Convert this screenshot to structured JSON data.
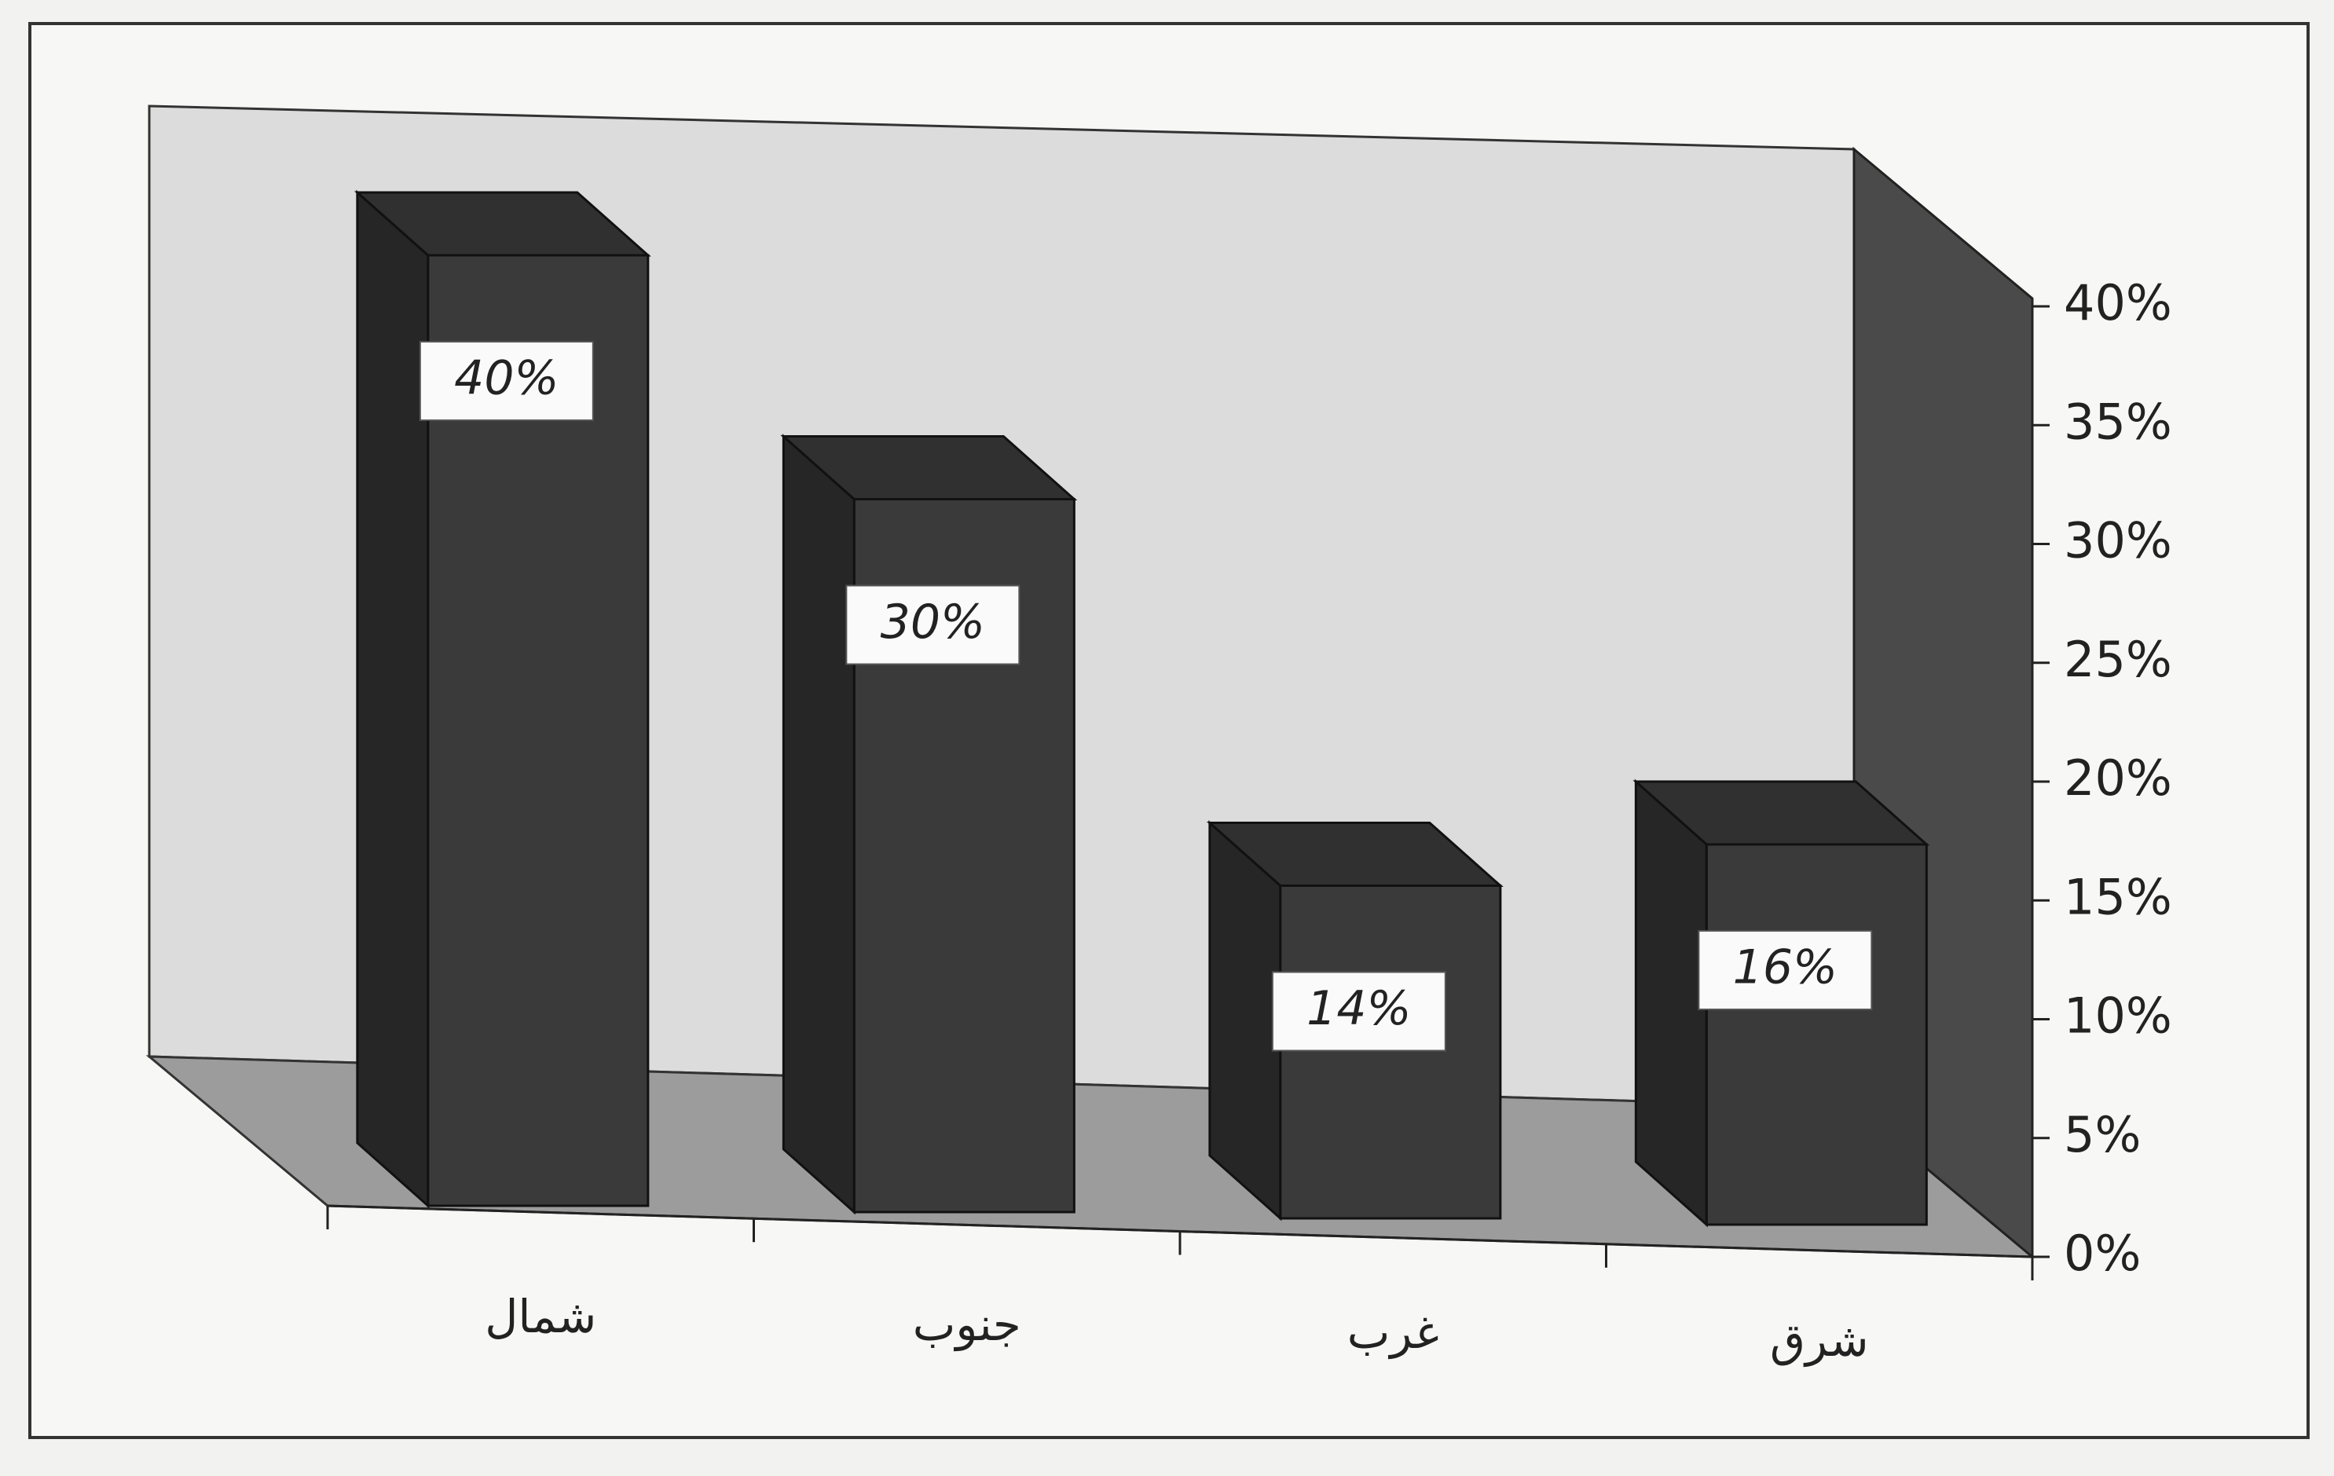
{
  "chart_data": {
    "type": "bar3d",
    "categories": [
      "شمال",
      "جنوب",
      "غرب",
      "شرق"
    ],
    "values": [
      40,
      30,
      14,
      16
    ],
    "value_labels": [
      "40%",
      "30%",
      "14%",
      "16%"
    ],
    "color": "#3a3a3a",
    "ylim": [
      0,
      40
    ],
    "yticks": [
      {
        "value": 0,
        "label": "0%"
      },
      {
        "value": 5,
        "label": "5%"
      },
      {
        "value": 10,
        "label": "10%"
      },
      {
        "value": 15,
        "label": "15%"
      },
      {
        "value": 20,
        "label": "20%"
      },
      {
        "value": 25,
        "label": "25%"
      },
      {
        "value": 30,
        "label": "30%"
      },
      {
        "value": 35,
        "label": "35%"
      },
      {
        "value": 40,
        "label": "40%"
      }
    ]
  }
}
